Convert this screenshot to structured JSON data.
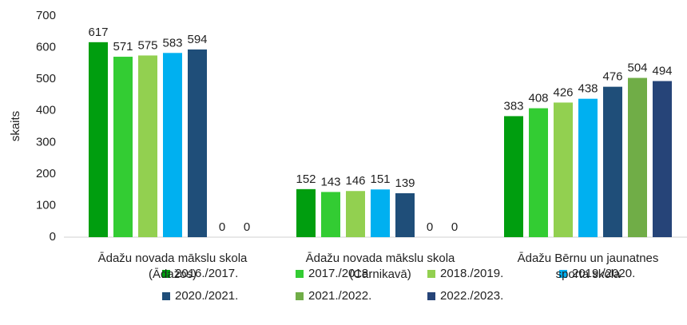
{
  "chart_data": {
    "type": "bar",
    "y_label": "skaits",
    "categories": [
      "Ādažu novada mākslu skola (Ādažos)",
      "Ādažu novada mākslu skola (Carnikavā)",
      "Ādažu Bērnu un jaunatnes sporta skola"
    ],
    "series": [
      {
        "name": "2016./2017.",
        "color": "#009e0f",
        "values": [
          617,
          152,
          383
        ]
      },
      {
        "name": "2017./2018.",
        "color": "#33cc33",
        "values": [
          571,
          143,
          408
        ]
      },
      {
        "name": "2018./2019.",
        "color": "#92d050",
        "values": [
          575,
          146,
          426
        ]
      },
      {
        "name": "2019./2020.",
        "color": "#00b0f0",
        "values": [
          583,
          151,
          438
        ]
      },
      {
        "name": "2020./2021.",
        "color": "#1f4e79",
        "values": [
          594,
          139,
          476
        ]
      },
      {
        "name": "2021./2022.",
        "color": "#70ad47",
        "values": [
          0,
          0,
          504
        ]
      },
      {
        "name": "2022./2023.",
        "color": "#264478",
        "values": [
          0,
          0,
          494
        ]
      }
    ],
    "ylim": [
      0,
      700
    ],
    "yticks": [
      0,
      100,
      200,
      300,
      400,
      500,
      600,
      700
    ],
    "grid": false
  }
}
